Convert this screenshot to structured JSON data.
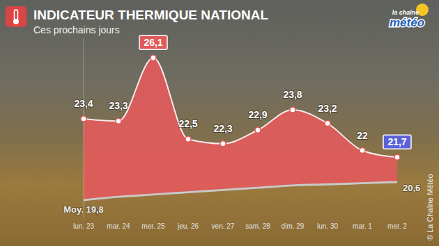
{
  "chart_data": {
    "type": "area",
    "title": "INDICATEUR THERMIQUE NATIONAL",
    "subtitle": "Ces prochains jours",
    "annotations": [
      "la chaîne météo",
      "© La Chaîne Météo"
    ],
    "categories": [
      "lun. 23",
      "mar. 24",
      "mer. 25",
      "jeu. 26",
      "ven. 27",
      "sam. 28",
      "dim. 29",
      "lun. 30",
      "mar. 1",
      "mer. 2"
    ],
    "series": [
      {
        "type": "area",
        "color": "#e15b5b",
        "values": [
          23.4,
          23.3,
          26.1,
          22.5,
          22.3,
          22.9,
          23.8,
          23.2,
          22,
          21.7
        ],
        "value_labels": [
          "23,4",
          "23,3",
          "26,1",
          "22,5",
          "22,3",
          "22,9",
          "23,8",
          "23,2",
          "22",
          "21,7"
        ]
      },
      {
        "type": "line",
        "color": "#c9c9c9",
        "values": [
          19.8,
          19.95,
          20.05,
          20.15,
          20.25,
          20.35,
          20.45,
          20.5,
          20.55,
          20.6
        ],
        "value_labels": [
          "Moy. 19,8",
          null,
          null,
          null,
          null,
          null,
          null,
          null,
          null,
          "20,6"
        ]
      }
    ],
    "ylim": [
      19,
      27
    ],
    "yticks": [],
    "tick_labels": "x",
    "data_labels": true,
    "grid": false
  }
}
